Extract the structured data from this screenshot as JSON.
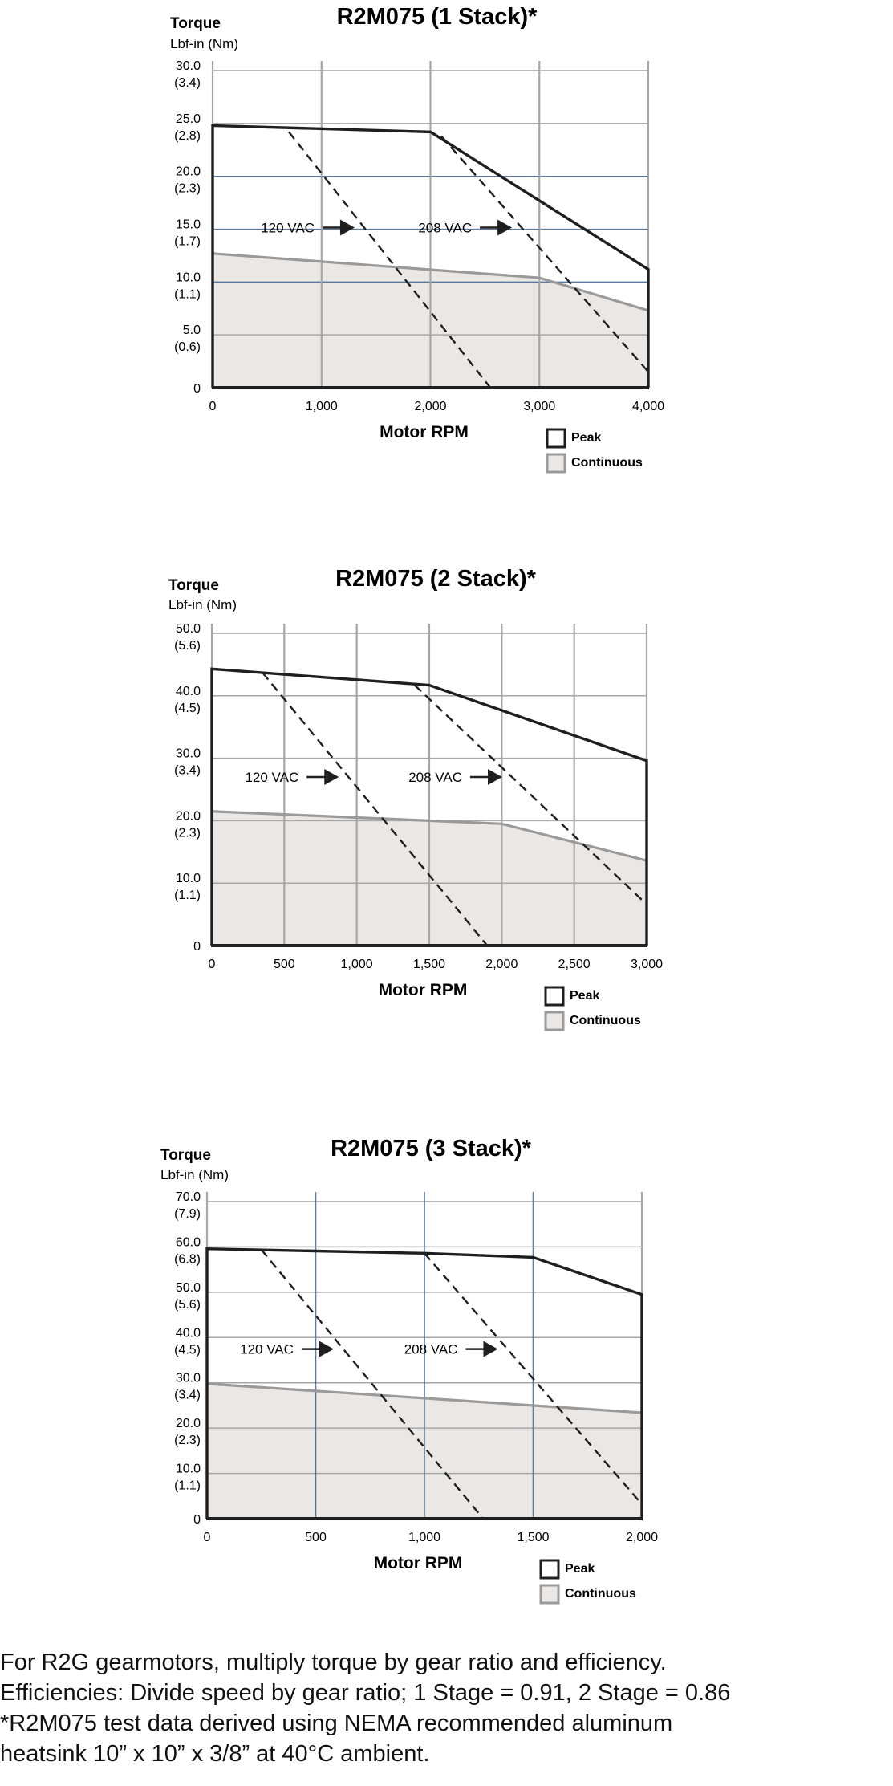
{
  "chart_data": [
    {
      "type": "line",
      "title": "R2M075 (1 Stack)*",
      "ylabel": "Torque",
      "ylabel_units": "Lbf-in (Nm)",
      "xlabel": "Motor RPM",
      "xlim": [
        0,
        4000
      ],
      "ylim": [
        0,
        30
      ],
      "x_ticks": [
        "0",
        "1,000",
        "2,000",
        "3,000",
        "4,000"
      ],
      "y_ticks": [
        {
          "value": 30,
          "label": "30.0",
          "nm": "(3.4)"
        },
        {
          "value": 25,
          "label": "25.0",
          "nm": "(2.8)"
        },
        {
          "value": 20,
          "label": "20.0",
          "nm": "(2.3)"
        },
        {
          "value": 15,
          "label": "15.0",
          "nm": "(1.7)"
        },
        {
          "value": 10,
          "label": "10.0",
          "nm": "(1.1)"
        },
        {
          "value": 5,
          "label": "5.0",
          "nm": "(0.6)"
        },
        {
          "value": 0,
          "label": "0",
          "nm": ""
        }
      ],
      "series": [
        {
          "name": "Peak",
          "x": [
            0,
            2000,
            4000
          ],
          "y": [
            24.8,
            24.2,
            11.2
          ]
        },
        {
          "name": "Continuous",
          "x": [
            0,
            3000,
            4000
          ],
          "y": [
            12.7,
            10.4,
            7.3
          ]
        }
      ],
      "voltage_lines": [
        {
          "label": "120 VAC",
          "x": [
            700,
            2550
          ],
          "y": [
            24.2,
            0
          ]
        },
        {
          "label": "208 VAC",
          "x": [
            2100,
            4000
          ],
          "y": [
            23.8,
            1.5
          ]
        }
      ],
      "grid": true,
      "legend_position": "bottom-right"
    },
    {
      "type": "line",
      "title": "R2M075 (2 Stack)*",
      "ylabel": "Torque",
      "ylabel_units": "Lbf-in (Nm)",
      "xlabel": "Motor RPM",
      "xlim": [
        0,
        3000
      ],
      "ylim": [
        0,
        50
      ],
      "x_ticks": [
        "0",
        "500",
        "1,000",
        "1,500",
        "2,000",
        "2,500",
        "3,000"
      ],
      "y_ticks": [
        {
          "value": 50,
          "label": "50.0",
          "nm": "(5.6)"
        },
        {
          "value": 40,
          "label": "40.0",
          "nm": "(4.5)"
        },
        {
          "value": 30,
          "label": "30.0",
          "nm": "(3.4)"
        },
        {
          "value": 20,
          "label": "20.0",
          "nm": "(2.3)"
        },
        {
          "value": 10,
          "label": "10.0",
          "nm": "(1.1)"
        },
        {
          "value": 0,
          "label": "0",
          "nm": ""
        }
      ],
      "series": [
        {
          "name": "Peak",
          "x": [
            0,
            1500,
            3000
          ],
          "y": [
            44.3,
            41.7,
            29.6
          ]
        },
        {
          "name": "Continuous",
          "x": [
            0,
            2000,
            3000
          ],
          "y": [
            21.5,
            19.5,
            13.6
          ]
        }
      ],
      "voltage_lines": [
        {
          "label": "120 VAC",
          "x": [
            350,
            1900
          ],
          "y": [
            43.7,
            0
          ]
        },
        {
          "label": "208 VAC",
          "x": [
            1400,
            3000
          ],
          "y": [
            41.7,
            6.6
          ]
        }
      ],
      "grid": true,
      "legend_position": "bottom-right"
    },
    {
      "type": "line",
      "title": "R2M075 (3 Stack)*",
      "ylabel": "Torque",
      "ylabel_units": "Lbf-in (Nm)",
      "xlabel": "Motor RPM",
      "xlim": [
        0,
        2000
      ],
      "ylim": [
        0,
        70
      ],
      "x_ticks": [
        "0",
        "500",
        "1,000",
        "1,500",
        "2,000"
      ],
      "y_ticks": [
        {
          "value": 70,
          "label": "70.0",
          "nm": "(7.9)"
        },
        {
          "value": 60,
          "label": "60.0",
          "nm": "(6.8)"
        },
        {
          "value": 50,
          "label": "50.0",
          "nm": "(5.6)"
        },
        {
          "value": 40,
          "label": "40.0",
          "nm": "(4.5)"
        },
        {
          "value": 30,
          "label": "30.0",
          "nm": "(3.4)"
        },
        {
          "value": 20,
          "label": "20.0",
          "nm": "(2.3)"
        },
        {
          "value": 10,
          "label": "10.0",
          "nm": "(1.1)"
        },
        {
          "value": 0,
          "label": "0",
          "nm": ""
        }
      ],
      "series": [
        {
          "name": "Peak",
          "x": [
            0,
            1000,
            1500,
            2000
          ],
          "y": [
            59.6,
            58.6,
            57.7,
            49.5
          ]
        },
        {
          "name": "Continuous",
          "x": [
            0,
            1000,
            2000
          ],
          "y": [
            29.8,
            26.6,
            23.4
          ]
        }
      ],
      "voltage_lines": [
        {
          "label": "120 VAC",
          "x": [
            250,
            1270
          ],
          "y": [
            59.4,
            0
          ]
        },
        {
          "label": "208 VAC",
          "x": [
            1000,
            2000
          ],
          "y": [
            58.6,
            3.2
          ]
        }
      ],
      "grid": true,
      "legend_position": "bottom-right"
    }
  ],
  "colors": {
    "peak": "#1f1f1f",
    "continuous_line": "#9a9a9a",
    "continuous_fill": "#ebe7e5",
    "grid": "#a6a6a6",
    "grid_blue": "#5a7a9c"
  },
  "footnotes": [
    "For R2G gearmotors, multiply torque by gear ratio and efficiency.",
    "Efficiencies: Divide speed by gear ratio; 1 Stage = 0.91, 2 Stage = 0.86",
    "*R2M075 test data derived using NEMA recommended aluminum",
    "heatsink 10” x 10” x 3/8” at 40°C ambient."
  ]
}
